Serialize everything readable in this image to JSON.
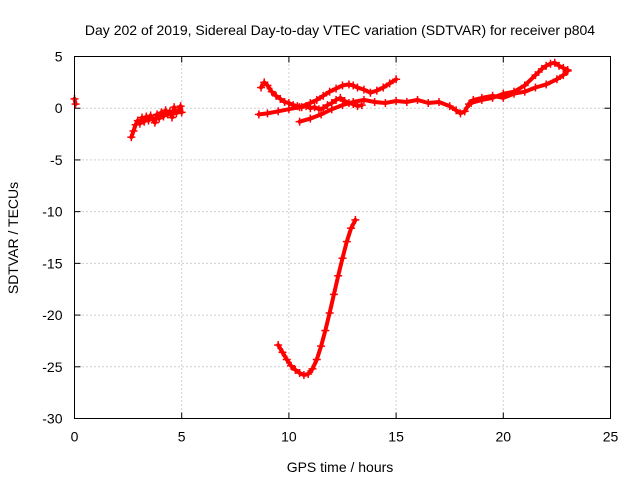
{
  "chart_data": {
    "type": "scatter",
    "title": "Day 202 of 2019, Sidereal Day-to-day VTEC variation (SDTVAR) for receiver p804",
    "xlabel": "GPS time / hours",
    "ylabel": "SDTVAR / TECUs",
    "xlim": [
      0,
      25
    ],
    "ylim": [
      -30,
      5
    ],
    "xticks": [
      0,
      5,
      10,
      15,
      20,
      25
    ],
    "yticks": [
      -30,
      -25,
      -20,
      -15,
      -10,
      -5,
      0,
      5
    ],
    "xtick_labels": [
      "0",
      "5",
      "10",
      "15",
      "20",
      "25"
    ],
    "ytick_labels": [
      "-30",
      "-25",
      "-20",
      "-15",
      "-10",
      "-5",
      "0",
      "5"
    ],
    "grid": true,
    "marker": "+",
    "color": "#ff0000",
    "series": [
      {
        "segments": [
          {
            "x": [
              0.0,
              0.05
            ],
            "y": [
              0.9,
              0.4
            ]
          },
          {
            "x": [
              2.65,
              2.75,
              2.85,
              2.95,
              3.05,
              3.15,
              3.25,
              3.35,
              3.45,
              3.55,
              3.65,
              3.75,
              3.85,
              3.95,
              4.05,
              4.15,
              4.25,
              4.35,
              4.45,
              4.55,
              4.65,
              4.75,
              4.85,
              4.95,
              5.0
            ],
            "y": [
              -2.8,
              -2.2,
              -1.6,
              -1.2,
              -1.5,
              -0.9,
              -1.3,
              -0.8,
              -1.2,
              -0.7,
              -1.0,
              -1.4,
              -0.6,
              -1.0,
              -0.4,
              -0.8,
              -0.2,
              -0.6,
              -0.3,
              -0.9,
              0.1,
              -0.5,
              -0.2,
              0.2,
              -0.4
            ]
          },
          {
            "x": [
              8.7,
              8.85,
              9.0,
              9.2,
              9.4,
              9.6,
              9.8,
              10.0,
              10.2,
              10.4,
              10.6,
              10.8,
              11.0,
              11.2,
              11.4,
              11.6,
              11.8,
              12.0,
              12.2,
              12.4,
              12.6,
              12.8,
              13.0,
              13.2,
              13.4
            ],
            "y": [
              2.0,
              2.5,
              2.2,
              1.6,
              1.2,
              0.9,
              0.6,
              0.5,
              0.3,
              0.2,
              0.1,
              0.2,
              0.0,
              0.1,
              -0.1,
              0.0,
              0.3,
              0.5,
              0.8,
              1.0,
              0.7,
              0.5,
              0.4,
              0.2,
              0.3
            ]
          },
          {
            "x": [
              8.6,
              9.0,
              9.5,
              10.0,
              10.5,
              11.0,
              11.3,
              11.6,
              11.9,
              12.2,
              12.5,
              12.8,
              13.0,
              13.2,
              13.5,
              13.8,
              14.1,
              14.4,
              14.7,
              15.0
            ],
            "y": [
              -0.6,
              -0.5,
              -0.3,
              -0.1,
              0.1,
              0.5,
              0.8,
              1.2,
              1.6,
              1.9,
              2.2,
              2.3,
              2.2,
              2.0,
              1.8,
              1.5,
              1.7,
              2.0,
              2.4,
              2.8
            ]
          },
          {
            "x": [
              10.5,
              11.0,
              11.5,
              12.0,
              12.5,
              13.0,
              13.5,
              14.0,
              14.5,
              15.0,
              15.5,
              16.0,
              16.5,
              17.0,
              17.5,
              17.8,
              18.0,
              18.2,
              18.4,
              18.6,
              19.0,
              19.5,
              20.0,
              20.5,
              21.0,
              21.5,
              22.0,
              22.5,
              22.8,
              23.0
            ],
            "y": [
              -1.3,
              -1.0,
              -0.6,
              -0.1,
              0.3,
              0.6,
              0.8,
              0.6,
              0.5,
              0.7,
              0.6,
              0.8,
              0.5,
              0.6,
              0.2,
              -0.2,
              -0.5,
              -0.3,
              0.4,
              0.8,
              1.0,
              1.2,
              1.0,
              1.4,
              1.6,
              2.0,
              2.3,
              2.8,
              3.2,
              3.6
            ]
          },
          {
            "x": [
              18.5,
              19.0,
              19.5,
              20.0,
              20.5,
              21.0,
              21.5,
              21.8,
              22.0,
              22.2,
              22.4,
              22.6,
              22.8,
              23.0
            ],
            "y": [
              0.5,
              0.8,
              1.0,
              1.4,
              1.6,
              2.2,
              3.2,
              3.8,
              4.1,
              4.3,
              4.4,
              4.1,
              3.9,
              3.7
            ]
          },
          {
            "x": [
              9.5,
              9.7,
              9.9,
              10.1,
              10.3,
              10.5,
              10.7,
              10.9,
              11.1,
              11.3,
              11.5,
              11.7,
              11.9,
              12.1,
              12.3,
              12.5,
              12.7,
              12.9,
              13.1
            ],
            "y": [
              -22.9,
              -23.6,
              -24.3,
              -24.9,
              -25.3,
              -25.6,
              -25.8,
              -25.7,
              -25.2,
              -24.3,
              -23.0,
              -21.5,
              -19.8,
              -18.0,
              -16.2,
              -14.5,
              -12.9,
              -11.6,
              -10.8
            ]
          }
        ]
      }
    ]
  }
}
